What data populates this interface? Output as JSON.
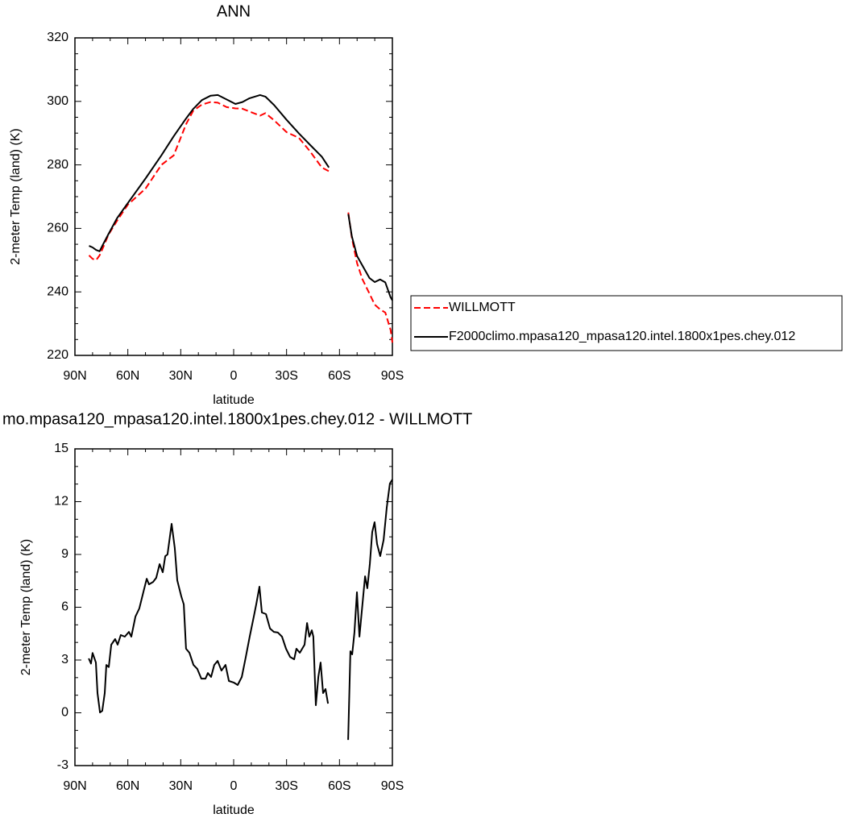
{
  "chart_data": [
    {
      "type": "line",
      "title": "ANN",
      "x_label": "latitude",
      "y_label": "2-meter Temp (land) (K)",
      "x": [
        82,
        80,
        78,
        76,
        74,
        71,
        66,
        60,
        50,
        41,
        34,
        27,
        23,
        18,
        13,
        9,
        4,
        -1,
        -5,
        -9,
        -15,
        -18,
        -23,
        -30,
        -37,
        -43,
        -50,
        -54,
        -60,
        -65,
        -67,
        -70,
        -73,
        -77,
        -80,
        -83,
        -86,
        -89,
        -90
      ],
      "series": [
        {
          "name": "WILLMOTT",
          "color": "#ff0000",
          "dashed": true,
          "values": [
            251.5,
            250.4,
            250,
            251.5,
            254,
            258,
            262.5,
            267.5,
            272.5,
            280,
            283,
            292.8,
            297,
            299,
            299.8,
            299.6,
            298.2,
            297.8,
            297.7,
            296.8,
            295.5,
            296.3,
            294,
            290.3,
            288.5,
            284.5,
            279.2,
            278,
            null,
            265,
            257,
            249,
            244,
            239.5,
            236,
            234.5,
            233.5,
            228,
            224
          ]
        },
        {
          "name": "F2000climo.mpasa120_mpasa120.intel.1800x1pes.chey.012",
          "color": "#000000",
          "dashed": false,
          "values": [
            254.5,
            254,
            253.2,
            252.8,
            255,
            258.2,
            263.3,
            268,
            275.7,
            283,
            289,
            294.6,
            297.6,
            300.4,
            301.8,
            302,
            300.6,
            299.2,
            299.8,
            301,
            302,
            301.5,
            298.8,
            294.2,
            289.9,
            286.5,
            282.6,
            279.2,
            null,
            264.5,
            257.5,
            251.3,
            248.3,
            244.4,
            243.1,
            243.9,
            243,
            238.3,
            237.3
          ]
        }
      ],
      "xlim": [
        90,
        -90
      ],
      "xticks": [
        {
          "value": 90,
          "label": "90N"
        },
        {
          "value": 60,
          "label": "60N"
        },
        {
          "value": 30,
          "label": "30N"
        },
        0,
        {
          "value": -30,
          "label": "30S"
        },
        {
          "value": -60,
          "label": "60S"
        },
        {
          "value": -90,
          "label": "90S"
        }
      ],
      "ylim": [
        220,
        320
      ],
      "yticks": [
        220,
        240,
        260,
        280,
        300,
        320
      ],
      "legend": "right"
    },
    {
      "type": "line",
      "title": "mo.mpasa120_mpasa120.intel.1800x1pes.chey.012 - WILLMOTT",
      "x_label": "latitude",
      "y_label": "2-meter Temp (land) (K)",
      "x": [
        82.2,
        80.9,
        80.0,
        78.1,
        77.2,
        75.8,
        74.5,
        73.1,
        72.2,
        70.8,
        69.4,
        67.2,
        65.8,
        64.0,
        61.7,
        59.4,
        58.0,
        55.7,
        53.5,
        51.2,
        49.3,
        48.0,
        45.7,
        43.9,
        42.0,
        40.2,
        38.8,
        37.5,
        35.2,
        33.4,
        32.0,
        29.7,
        28.3,
        27.0,
        25.1,
        22.8,
        20.6,
        18.3,
        16.0,
        14.6,
        12.8,
        11.0,
        9.1,
        6.9,
        4.6,
        2.7,
        0.0,
        -2.3,
        -4.6,
        -6.9,
        -9.1,
        -11.4,
        -12.8,
        -14.6,
        -16.0,
        -18.3,
        -20.6,
        -22.8,
        -25.1,
        -27.4,
        -29.7,
        -32.0,
        -34.3,
        -35.6,
        -37.5,
        -40.2,
        -41.6,
        -42.9,
        -44.3,
        -45.2,
        -46.6,
        -48.0,
        -49.3,
        -50.7,
        -52.1,
        -53.5,
        -60,
        -64.9,
        -66.2,
        -67.2,
        -68.5,
        -69.9,
        -71.3,
        -72.6,
        -74.5,
        -75.8,
        -77.2,
        -78.6,
        -79.9,
        -81.3,
        -83.1,
        -85.0,
        -86.8,
        -88.6,
        -90.0
      ],
      "values": [
        3.09,
        2.8,
        3.4,
        2.86,
        1.12,
        0.02,
        0.11,
        1.12,
        2.72,
        2.6,
        3.87,
        4.19,
        3.87,
        4.42,
        4.33,
        4.6,
        4.33,
        5.47,
        5.93,
        6.85,
        7.62,
        7.3,
        7.44,
        7.67,
        8.45,
        7.99,
        8.9,
        9.0,
        10.74,
        9.37,
        7.53,
        6.62,
        6.16,
        3.64,
        3.41,
        2.72,
        2.49,
        1.94,
        1.94,
        2.26,
        2.04,
        2.72,
        2.95,
        2.4,
        2.72,
        1.81,
        1.72,
        1.58,
        2.04,
        3.18,
        4.33,
        5.47,
        6.16,
        7.17,
        5.7,
        5.61,
        4.79,
        4.6,
        4.56,
        4.33,
        3.64,
        3.18,
        3.04,
        3.64,
        3.41,
        3.87,
        5.1,
        4.33,
        4.69,
        4.33,
        0.43,
        2.04,
        2.86,
        1.12,
        1.35,
        0.52,
        null,
        -1.54,
        3.5,
        3.32,
        4.56,
        6.85,
        4.33,
        5.7,
        7.76,
        7.08,
        8.45,
        10.28,
        10.83,
        9.59,
        8.91,
        9.82,
        11.66,
        13.03,
        13.26
      ],
      "color": "#000000",
      "xlim": [
        90,
        -90
      ],
      "xticks": [
        {
          "value": 90,
          "label": "90N"
        },
        {
          "value": 60,
          "label": "60N"
        },
        {
          "value": 30,
          "label": "30N"
        },
        0,
        {
          "value": -30,
          "label": "30S"
        },
        {
          "value": -60,
          "label": "60S"
        },
        {
          "value": -90,
          "label": "90S"
        }
      ],
      "ylim": [
        -3,
        15
      ],
      "yticks": [
        -3,
        0,
        3,
        6,
        9,
        12,
        15
      ]
    }
  ]
}
